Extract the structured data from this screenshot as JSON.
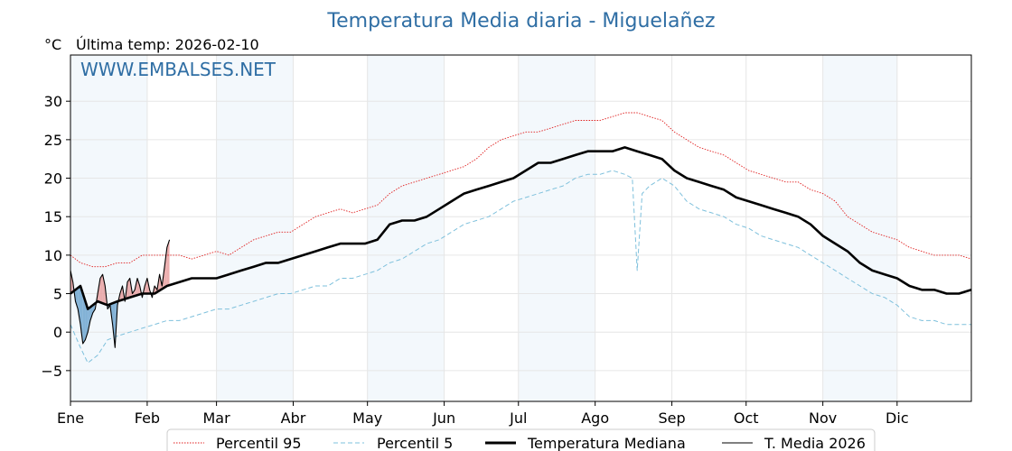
{
  "chart_data": {
    "type": "line",
    "title": "Temperatura Media diaria - Miguelañez",
    "unit_label": "°C",
    "last_temp_label": "Última temp: 2026-02-10",
    "watermark": "WWW.EMBALSES.NET",
    "ylim": [
      -9,
      36
    ],
    "y_ticks": [
      30,
      25,
      20,
      15,
      10,
      5,
      0,
      -5
    ],
    "y_tick_labels": [
      "30",
      "25",
      "20",
      "15",
      "10",
      "5",
      "0",
      "−5"
    ],
    "x_domain_days": [
      1,
      365
    ],
    "months": [
      {
        "label": "Ene",
        "start_day": 1,
        "end_day": 32,
        "shaded": true
      },
      {
        "label": "Feb",
        "start_day": 32,
        "end_day": 60,
        "shaded": false
      },
      {
        "label": "Mar",
        "start_day": 60,
        "end_day": 91,
        "shaded": true
      },
      {
        "label": "Abr",
        "start_day": 91,
        "end_day": 121,
        "shaded": false
      },
      {
        "label": "May",
        "start_day": 121,
        "end_day": 152,
        "shaded": true
      },
      {
        "label": "Jun",
        "start_day": 152,
        "end_day": 182,
        "shaded": false
      },
      {
        "label": "Jul",
        "start_day": 182,
        "end_day": 213,
        "shaded": true
      },
      {
        "label": "Ago",
        "start_day": 213,
        "end_day": 244,
        "shaded": false
      },
      {
        "label": "Sep",
        "start_day": 244,
        "end_day": 274,
        "shaded": false
      },
      {
        "label": "Oct",
        "start_day": 274,
        "end_day": 305,
        "shaded": false
      },
      {
        "label": "Nov",
        "start_day": 305,
        "end_day": 335,
        "shaded": true
      },
      {
        "label": "Dic",
        "start_day": 335,
        "end_day": 366,
        "shaded": false
      }
    ],
    "grid": true,
    "legend_position": "bottom",
    "series": [
      {
        "name": "Percentil 95",
        "style": "dotted",
        "color": "#e02020",
        "points": [
          [
            1,
            10
          ],
          [
            5,
            9
          ],
          [
            10,
            8.5
          ],
          [
            15,
            8.5
          ],
          [
            20,
            9
          ],
          [
            25,
            9
          ],
          [
            30,
            10
          ],
          [
            35,
            10
          ],
          [
            40,
            10
          ],
          [
            45,
            10
          ],
          [
            50,
            9.5
          ],
          [
            55,
            10
          ],
          [
            60,
            10.5
          ],
          [
            65,
            10
          ],
          [
            70,
            11
          ],
          [
            75,
            12
          ],
          [
            80,
            12.5
          ],
          [
            85,
            13
          ],
          [
            90,
            13
          ],
          [
            95,
            14
          ],
          [
            100,
            15
          ],
          [
            105,
            15.5
          ],
          [
            110,
            16
          ],
          [
            115,
            15.5
          ],
          [
            120,
            16
          ],
          [
            125,
            16.5
          ],
          [
            130,
            18
          ],
          [
            135,
            19
          ],
          [
            140,
            19.5
          ],
          [
            145,
            20
          ],
          [
            150,
            20.5
          ],
          [
            155,
            21
          ],
          [
            160,
            21.5
          ],
          [
            165,
            22.5
          ],
          [
            170,
            24
          ],
          [
            175,
            25
          ],
          [
            180,
            25.5
          ],
          [
            185,
            26
          ],
          [
            190,
            26
          ],
          [
            195,
            26.5
          ],
          [
            200,
            27
          ],
          [
            205,
            27.5
          ],
          [
            210,
            27.5
          ],
          [
            215,
            27.5
          ],
          [
            220,
            28
          ],
          [
            225,
            28.5
          ],
          [
            230,
            28.5
          ],
          [
            235,
            28
          ],
          [
            240,
            27.5
          ],
          [
            245,
            26
          ],
          [
            250,
            25
          ],
          [
            255,
            24
          ],
          [
            260,
            23.5
          ],
          [
            265,
            23
          ],
          [
            270,
            22
          ],
          [
            275,
            21
          ],
          [
            280,
            20.5
          ],
          [
            285,
            20
          ],
          [
            290,
            19.5
          ],
          [
            295,
            19.5
          ],
          [
            300,
            18.5
          ],
          [
            305,
            18
          ],
          [
            310,
            17
          ],
          [
            315,
            15
          ],
          [
            320,
            14
          ],
          [
            325,
            13
          ],
          [
            330,
            12.5
          ],
          [
            335,
            12
          ],
          [
            340,
            11
          ],
          [
            345,
            10.5
          ],
          [
            350,
            10
          ],
          [
            355,
            10
          ],
          [
            360,
            10
          ],
          [
            365,
            9.5
          ]
        ]
      },
      {
        "name": "Percentil 5",
        "style": "dashed",
        "color": "#7ec0dc",
        "points": [
          [
            1,
            1
          ],
          [
            5,
            -2
          ],
          [
            8,
            -4
          ],
          [
            12,
            -3
          ],
          [
            16,
            -1
          ],
          [
            20,
            -0.5
          ],
          [
            25,
            0
          ],
          [
            30,
            0.5
          ],
          [
            35,
            1
          ],
          [
            40,
            1.5
          ],
          [
            45,
            1.5
          ],
          [
            50,
            2
          ],
          [
            55,
            2.5
          ],
          [
            60,
            3
          ],
          [
            65,
            3
          ],
          [
            70,
            3.5
          ],
          [
            75,
            4
          ],
          [
            80,
            4.5
          ],
          [
            85,
            5
          ],
          [
            90,
            5
          ],
          [
            95,
            5.5
          ],
          [
            100,
            6
          ],
          [
            105,
            6
          ],
          [
            110,
            7
          ],
          [
            115,
            7
          ],
          [
            120,
            7.5
          ],
          [
            125,
            8
          ],
          [
            130,
            9
          ],
          [
            135,
            9.5
          ],
          [
            140,
            10.5
          ],
          [
            145,
            11.5
          ],
          [
            150,
            12
          ],
          [
            155,
            13
          ],
          [
            160,
            14
          ],
          [
            165,
            14.5
          ],
          [
            170,
            15
          ],
          [
            175,
            16
          ],
          [
            180,
            17
          ],
          [
            185,
            17.5
          ],
          [
            190,
            18
          ],
          [
            195,
            18.5
          ],
          [
            200,
            19
          ],
          [
            205,
            20
          ],
          [
            210,
            20.5
          ],
          [
            215,
            20.5
          ],
          [
            220,
            21
          ],
          [
            225,
            20.5
          ],
          [
            228,
            20
          ],
          [
            230,
            8
          ],
          [
            232,
            18
          ],
          [
            235,
            19
          ],
          [
            240,
            20
          ],
          [
            245,
            19
          ],
          [
            250,
            17
          ],
          [
            255,
            16
          ],
          [
            260,
            15.5
          ],
          [
            265,
            15
          ],
          [
            270,
            14
          ],
          [
            275,
            13.5
          ],
          [
            280,
            12.5
          ],
          [
            285,
            12
          ],
          [
            290,
            11.5
          ],
          [
            295,
            11
          ],
          [
            300,
            10
          ],
          [
            305,
            9
          ],
          [
            310,
            8
          ],
          [
            315,
            7
          ],
          [
            320,
            6
          ],
          [
            325,
            5
          ],
          [
            330,
            4.5
          ],
          [
            335,
            3.5
          ],
          [
            340,
            2
          ],
          [
            345,
            1.5
          ],
          [
            350,
            1.5
          ],
          [
            355,
            1
          ],
          [
            360,
            1
          ],
          [
            365,
            1
          ]
        ]
      },
      {
        "name": "Temperatura Mediana",
        "style": "solid-thick",
        "color": "#000000",
        "points": [
          [
            1,
            5
          ],
          [
            5,
            6
          ],
          [
            8,
            3
          ],
          [
            12,
            4
          ],
          [
            16,
            3.5
          ],
          [
            20,
            4
          ],
          [
            25,
            4.5
          ],
          [
            30,
            5
          ],
          [
            35,
            5
          ],
          [
            40,
            6
          ],
          [
            45,
            6.5
          ],
          [
            50,
            7
          ],
          [
            55,
            7
          ],
          [
            60,
            7
          ],
          [
            65,
            7.5
          ],
          [
            70,
            8
          ],
          [
            75,
            8.5
          ],
          [
            80,
            9
          ],
          [
            85,
            9
          ],
          [
            90,
            9.5
          ],
          [
            95,
            10
          ],
          [
            100,
            10.5
          ],
          [
            105,
            11
          ],
          [
            110,
            11.5
          ],
          [
            115,
            11.5
          ],
          [
            120,
            11.5
          ],
          [
            125,
            12
          ],
          [
            130,
            14
          ],
          [
            135,
            14.5
          ],
          [
            140,
            14.5
          ],
          [
            145,
            15
          ],
          [
            150,
            16
          ],
          [
            155,
            17
          ],
          [
            160,
            18
          ],
          [
            165,
            18.5
          ],
          [
            170,
            19
          ],
          [
            175,
            19.5
          ],
          [
            180,
            20
          ],
          [
            185,
            21
          ],
          [
            190,
            22
          ],
          [
            195,
            22
          ],
          [
            200,
            22.5
          ],
          [
            205,
            23
          ],
          [
            210,
            23.5
          ],
          [
            215,
            23.5
          ],
          [
            220,
            23.5
          ],
          [
            225,
            24
          ],
          [
            230,
            23.5
          ],
          [
            235,
            23
          ],
          [
            240,
            22.5
          ],
          [
            245,
            21
          ],
          [
            250,
            20
          ],
          [
            255,
            19.5
          ],
          [
            260,
            19
          ],
          [
            265,
            18.5
          ],
          [
            270,
            17.5
          ],
          [
            275,
            17
          ],
          [
            280,
            16.5
          ],
          [
            285,
            16
          ],
          [
            290,
            15.5
          ],
          [
            295,
            15
          ],
          [
            300,
            14
          ],
          [
            305,
            12.5
          ],
          [
            310,
            11.5
          ],
          [
            315,
            10.5
          ],
          [
            320,
            9
          ],
          [
            325,
            8
          ],
          [
            330,
            7.5
          ],
          [
            335,
            7
          ],
          [
            340,
            6
          ],
          [
            345,
            5.5
          ],
          [
            350,
            5.5
          ],
          [
            355,
            5
          ],
          [
            360,
            5
          ],
          [
            365,
            5.5
          ]
        ]
      },
      {
        "name": "T. Media 2026",
        "style": "solid-thin",
        "color": "#000000",
        "points": [
          [
            1,
            8
          ],
          [
            2,
            6.5
          ],
          [
            3,
            4
          ],
          [
            4,
            3
          ],
          [
            5,
            1
          ],
          [
            6,
            -1.5
          ],
          [
            7,
            -1
          ],
          [
            8,
            0
          ],
          [
            9,
            1.5
          ],
          [
            10,
            2.5
          ],
          [
            11,
            3
          ],
          [
            12,
            5
          ],
          [
            13,
            7
          ],
          [
            14,
            7.5
          ],
          [
            15,
            6
          ],
          [
            16,
            3
          ],
          [
            17,
            3.5
          ],
          [
            18,
            1
          ],
          [
            19,
            -2
          ],
          [
            20,
            3.5
          ],
          [
            21,
            5
          ],
          [
            22,
            6
          ],
          [
            23,
            4
          ],
          [
            24,
            6.5
          ],
          [
            25,
            7
          ],
          [
            26,
            5
          ],
          [
            27,
            5.5
          ],
          [
            28,
            7
          ],
          [
            29,
            6
          ],
          [
            30,
            4.5
          ],
          [
            31,
            6
          ],
          [
            32,
            7
          ],
          [
            33,
            5.5
          ],
          [
            34,
            4.5
          ],
          [
            35,
            6
          ],
          [
            36,
            5.5
          ],
          [
            37,
            7.5
          ],
          [
            38,
            6
          ],
          [
            39,
            8.5
          ],
          [
            40,
            11
          ],
          [
            41,
            12
          ]
        ]
      }
    ]
  }
}
